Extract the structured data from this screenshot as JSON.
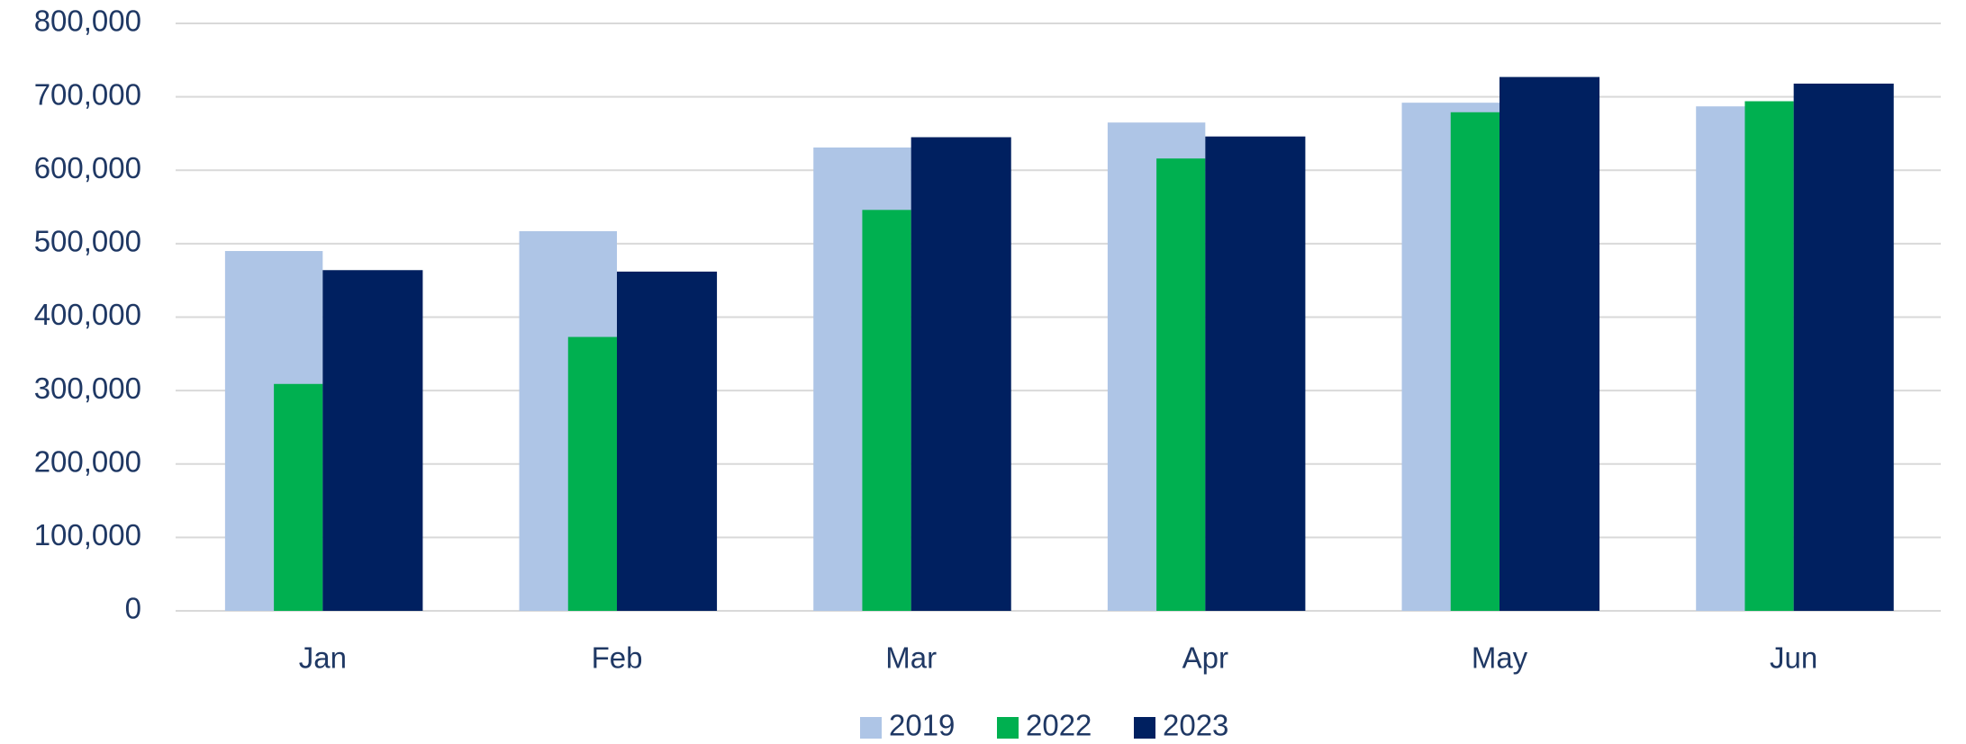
{
  "chart_data": {
    "type": "bar",
    "categories": [
      "Jan",
      "Feb",
      "Mar",
      "Apr",
      "May",
      "Jun"
    ],
    "series": [
      {
        "name": "2019",
        "color": "#aec5e6",
        "values": [
          490000,
          517000,
          631000,
          665000,
          692000,
          687000
        ]
      },
      {
        "name": "2022",
        "color": "#00b050",
        "values": [
          309000,
          373000,
          546000,
          616000,
          679000,
          694000
        ]
      },
      {
        "name": "2023",
        "color": "#002060",
        "values": [
          464000,
          462000,
          645000,
          646000,
          727000,
          718000
        ]
      }
    ],
    "ylim": [
      0,
      800000
    ],
    "yticks": [
      0,
      {
        "value": 100000,
        "label": "100,000"
      },
      {
        "value": 200000,
        "label": "200,000"
      },
      {
        "value": 300000,
        "label": "300,000"
      },
      {
        "value": 400000,
        "label": "400,000"
      },
      {
        "value": 500000,
        "label": "500,000"
      },
      {
        "value": 600000,
        "label": "600,000"
      },
      {
        "value": 700000,
        "label": "700,000"
      },
      {
        "value": 800000,
        "label": "800,000"
      }
    ],
    "grid": true,
    "legend": "bottom"
  }
}
